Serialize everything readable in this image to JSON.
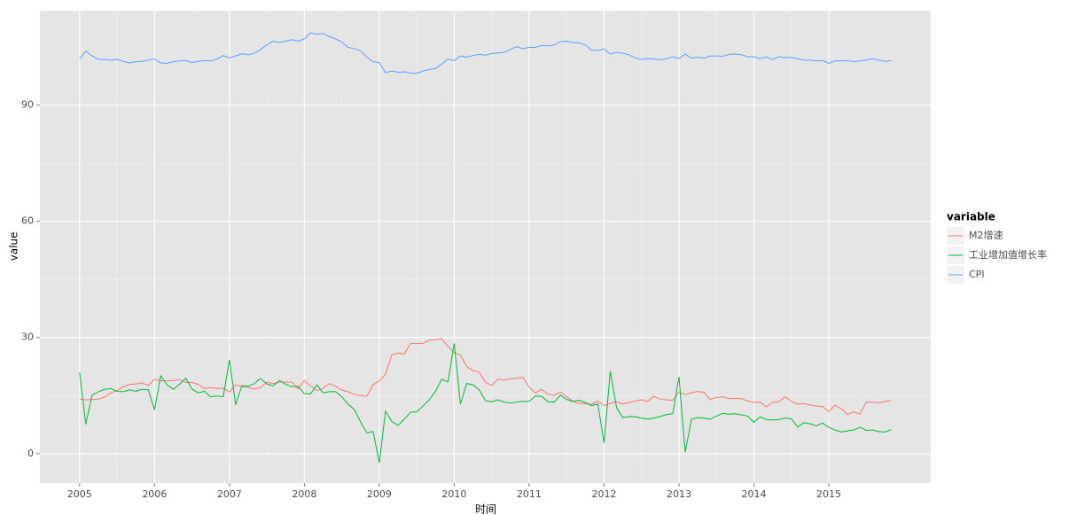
{
  "chart_data": {
    "type": "line",
    "x_label": "时间",
    "y_label": "value",
    "legend_title": "variable",
    "legend_position": "right",
    "grid": true,
    "xlim": [
      2004.47,
      2016.36
    ],
    "xticks": [
      2005,
      2006,
      2007,
      2008,
      2009,
      2010,
      2011,
      2012,
      2013,
      2014,
      2015
    ],
    "ylim": [
      -7.6,
      114.4
    ],
    "yticks": [
      0,
      30,
      60,
      90
    ],
    "x": [
      2005,
      2005.083,
      2005.167,
      2005.25,
      2005.333,
      2005.417,
      2005.5,
      2005.583,
      2005.667,
      2005.75,
      2005.833,
      2005.917,
      2006,
      2006.083,
      2006.167,
      2006.25,
      2006.333,
      2006.417,
      2006.5,
      2006.583,
      2006.667,
      2006.75,
      2006.833,
      2006.917,
      2007,
      2007.083,
      2007.167,
      2007.25,
      2007.333,
      2007.417,
      2007.5,
      2007.583,
      2007.667,
      2007.75,
      2007.833,
      2007.917,
      2008,
      2008.083,
      2008.167,
      2008.25,
      2008.333,
      2008.417,
      2008.5,
      2008.583,
      2008.667,
      2008.75,
      2008.833,
      2008.917,
      2009,
      2009.083,
      2009.167,
      2009.25,
      2009.333,
      2009.417,
      2009.5,
      2009.583,
      2009.667,
      2009.75,
      2009.833,
      2009.917,
      2010,
      2010.083,
      2010.167,
      2010.25,
      2010.333,
      2010.417,
      2010.5,
      2010.583,
      2010.667,
      2010.75,
      2010.833,
      2010.917,
      2011,
      2011.083,
      2011.167,
      2011.25,
      2011.333,
      2011.417,
      2011.5,
      2011.583,
      2011.667,
      2011.75,
      2011.833,
      2011.917,
      2012,
      2012.083,
      2012.167,
      2012.25,
      2012.333,
      2012.417,
      2012.5,
      2012.583,
      2012.667,
      2012.75,
      2012.833,
      2012.917,
      2013,
      2013.083,
      2013.167,
      2013.25,
      2013.333,
      2013.417,
      2013.5,
      2013.583,
      2013.667,
      2013.75,
      2013.833,
      2013.917,
      2014,
      2014.083,
      2014.167,
      2014.25,
      2014.333,
      2014.417,
      2014.5,
      2014.583,
      2014.667,
      2014.75,
      2014.833,
      2014.917,
      2015,
      2015.083,
      2015.167,
      2015.25,
      2015.333,
      2015.417,
      2015.5,
      2015.583,
      2015.667,
      2015.75,
      2015.833
    ],
    "series": [
      {
        "name": "M2增速",
        "color": "#F8766D",
        "values": [
          14.1,
          13.9,
          14.0,
          14.1,
          14.6,
          15.7,
          16.3,
          17.3,
          17.9,
          18.0,
          18.3,
          17.6,
          19.2,
          18.8,
          18.8,
          18.9,
          19.1,
          18.4,
          18.4,
          17.9,
          16.8,
          17.1,
          16.8,
          16.9,
          15.9,
          17.8,
          17.3,
          17.1,
          16.7,
          17.1,
          18.5,
          18.1,
          18.5,
          18.5,
          18.5,
          16.7,
          18.9,
          17.5,
          16.3,
          16.9,
          18.1,
          17.4,
          16.4,
          16.0,
          15.3,
          15.0,
          14.8,
          17.8,
          18.8,
          20.5,
          25.5,
          26.0,
          25.7,
          28.5,
          28.4,
          28.5,
          29.3,
          29.4,
          29.7,
          27.7,
          26.1,
          25.5,
          22.5,
          21.5,
          21.0,
          18.5,
          17.6,
          19.2,
          19.0,
          19.3,
          19.5,
          19.7,
          17.2,
          15.7,
          16.6,
          15.3,
          15.1,
          15.9,
          14.7,
          13.5,
          13.0,
          12.9,
          12.7,
          13.6,
          12.4,
          13.0,
          13.4,
          12.8,
          13.2,
          13.6,
          13.9,
          13.5,
          14.8,
          14.1,
          13.9,
          13.8,
          15.9,
          15.2,
          15.7,
          16.1,
          15.8,
          14.0,
          14.5,
          14.7,
          14.2,
          14.3,
          14.2,
          13.6,
          13.2,
          13.3,
          12.1,
          13.2,
          13.4,
          14.7,
          13.5,
          12.8,
          12.9,
          12.6,
          12.3,
          12.2,
          10.8,
          12.5,
          11.6,
          10.1,
          10.8,
          10.2,
          13.3,
          13.3,
          13.1,
          13.5,
          13.7
        ]
      },
      {
        "name": "工业增加值增长率",
        "color": "#00BA38",
        "values": [
          20.9,
          7.6,
          15.1,
          16.0,
          16.6,
          16.8,
          16.1,
          16.0,
          16.5,
          16.1,
          16.6,
          16.5,
          11.3,
          20.1,
          17.8,
          16.6,
          17.9,
          19.5,
          16.7,
          15.7,
          16.1,
          14.7,
          14.9,
          14.7,
          24.2,
          12.6,
          17.6,
          17.4,
          18.1,
          19.4,
          18.0,
          17.5,
          18.9,
          17.9,
          17.3,
          17.4,
          15.5,
          15.4,
          17.8,
          15.7,
          16.0,
          16.0,
          14.7,
          12.8,
          11.4,
          8.2,
          5.4,
          5.7,
          -2.3,
          11.0,
          8.3,
          7.3,
          8.9,
          10.7,
          10.8,
          12.3,
          13.9,
          16.1,
          19.2,
          18.5,
          28.5,
          12.8,
          18.1,
          17.8,
          16.5,
          13.7,
          13.4,
          13.9,
          13.3,
          13.1,
          13.3,
          13.5,
          13.5,
          14.9,
          14.8,
          13.4,
          13.3,
          15.1,
          14.0,
          13.5,
          13.8,
          13.2,
          12.4,
          12.8,
          2.8,
          21.3,
          11.9,
          9.3,
          9.6,
          9.5,
          9.2,
          8.9,
          9.2,
          9.6,
          10.1,
          10.3,
          19.8,
          0.4,
          8.9,
          9.3,
          9.2,
          8.9,
          9.7,
          10.4,
          10.2,
          10.3,
          10.0,
          9.7,
          8.1,
          9.5,
          8.8,
          8.7,
          8.8,
          9.2,
          9.0,
          6.9,
          8.0,
          7.7,
          7.2,
          7.9,
          6.8,
          6.1,
          5.6,
          5.9,
          6.1,
          6.8,
          6.0,
          6.1,
          5.7,
          5.6,
          6.2
        ]
      },
      {
        "name": "CPI",
        "color": "#619CFF",
        "values": [
          101.9,
          103.9,
          102.7,
          101.8,
          101.8,
          101.6,
          101.8,
          101.3,
          100.9,
          101.2,
          101.3,
          101.6,
          101.9,
          100.9,
          100.8,
          101.2,
          101.4,
          101.5,
          101.0,
          101.3,
          101.5,
          101.4,
          101.9,
          102.8,
          102.2,
          102.7,
          103.3,
          103.0,
          103.4,
          104.4,
          105.6,
          106.5,
          106.2,
          106.5,
          106.9,
          106.5,
          107.1,
          108.7,
          108.3,
          108.5,
          107.7,
          107.1,
          106.3,
          104.9,
          104.6,
          104.0,
          102.4,
          101.2,
          101.0,
          98.4,
          98.8,
          98.5,
          98.6,
          98.3,
          98.2,
          98.8,
          99.2,
          99.5,
          100.6,
          101.9,
          101.5,
          102.7,
          102.4,
          102.8,
          103.1,
          102.9,
          103.3,
          103.5,
          103.6,
          104.4,
          105.1,
          104.6,
          104.9,
          104.9,
          105.4,
          105.3,
          105.5,
          106.4,
          106.5,
          106.2,
          106.1,
          105.5,
          104.2,
          104.1,
          104.5,
          103.2,
          103.6,
          103.4,
          103.0,
          102.2,
          101.8,
          102.0,
          101.9,
          101.7,
          102.0,
          102.5,
          102.0,
          103.2,
          102.1,
          102.4,
          102.1,
          102.7,
          102.7,
          102.6,
          103.1,
          103.2,
          103.0,
          102.5,
          102.5,
          102.0,
          102.4,
          101.8,
          102.5,
          102.3,
          102.3,
          102.0,
          101.6,
          101.6,
          101.4,
          101.5,
          100.8,
          101.4,
          101.4,
          101.5,
          101.2,
          101.4,
          101.6,
          102.0,
          101.6,
          101.3,
          101.5
        ]
      }
    ]
  }
}
